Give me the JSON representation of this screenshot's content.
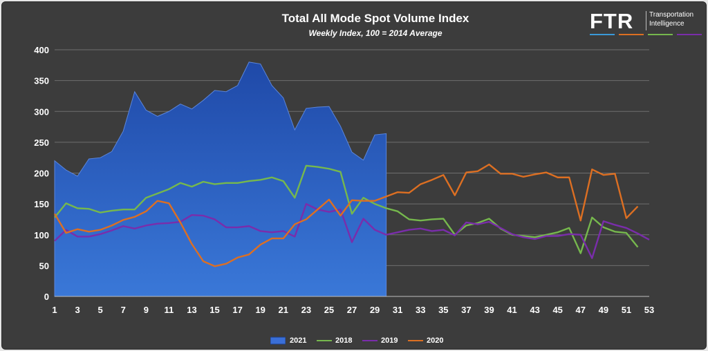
{
  "chart_data": {
    "type": "line",
    "title": "Total All Mode Spot Volume Index",
    "subtitle": "Weekly Index, 100 = 2014 Average",
    "xlabel": "",
    "ylabel": "",
    "x_ticks": [
      1,
      3,
      5,
      7,
      9,
      11,
      13,
      15,
      17,
      19,
      21,
      23,
      25,
      27,
      29,
      31,
      33,
      35,
      37,
      39,
      41,
      43,
      45,
      47,
      49,
      51,
      53
    ],
    "y_ticks": [
      0,
      50,
      100,
      150,
      200,
      250,
      300,
      350,
      400
    ],
    "xlim": [
      1,
      53
    ],
    "ylim": [
      0,
      400
    ],
    "grid": "horizontal",
    "legend_position": "bottom",
    "series": [
      {
        "name": "2021",
        "style": "area",
        "color": "#3a6fd8",
        "values": [
          220,
          205,
          195,
          223,
          225,
          235,
          268,
          332,
          302,
          292,
          300,
          312,
          304,
          318,
          334,
          332,
          342,
          380,
          377,
          342,
          322,
          270,
          305,
          307,
          308,
          276,
          234,
          221,
          262,
          264
        ]
      },
      {
        "name": "2018",
        "style": "line",
        "color": "#76b84d",
        "values": [
          128,
          151,
          143,
          142,
          136,
          139,
          141,
          141,
          160,
          167,
          174,
          184,
          178,
          186,
          182,
          184,
          184,
          187,
          189,
          193,
          187,
          160,
          212,
          210,
          207,
          202,
          134,
          160,
          150,
          143,
          138,
          125,
          123,
          125,
          126,
          100,
          115,
          119,
          126,
          110,
          100,
          98,
          96,
          100,
          104,
          111,
          70,
          128,
          112,
          105,
          103,
          80
        ]
      },
      {
        "name": "2019",
        "style": "line",
        "color": "#7a2dab",
        "values": [
          90,
          108,
          97,
          97,
          101,
          107,
          114,
          110,
          115,
          118,
          119,
          121,
          132,
          131,
          125,
          112,
          112,
          114,
          106,
          104,
          106,
          97,
          150,
          141,
          137,
          141,
          88,
          126,
          108,
          100,
          104,
          108,
          110,
          106,
          108,
          99,
          120,
          117,
          121,
          111,
          101,
          96,
          93,
          98,
          98,
          101,
          100,
          62,
          122,
          116,
          111,
          102,
          92
        ]
      },
      {
        "name": "2020",
        "style": "line",
        "color": "#dd6f22",
        "values": [
          134,
          103,
          109,
          105,
          108,
          115,
          124,
          129,
          138,
          155,
          151,
          120,
          85,
          57,
          49,
          53,
          63,
          68,
          84,
          94,
          94,
          117,
          125,
          141,
          157,
          131,
          156,
          155,
          155,
          162,
          169,
          168,
          182,
          189,
          197,
          164,
          201,
          203,
          214,
          199,
          199,
          194,
          198,
          201,
          193,
          193,
          123,
          206,
          197,
          199,
          127,
          146
        ]
      }
    ]
  },
  "logo": {
    "mark": "FTR",
    "line1": "Transportation",
    "line2": "Intelligence",
    "bar_colors": [
      "#3a9ad9",
      "#dd6f22",
      "#76b84d",
      "#7a2dab"
    ]
  }
}
